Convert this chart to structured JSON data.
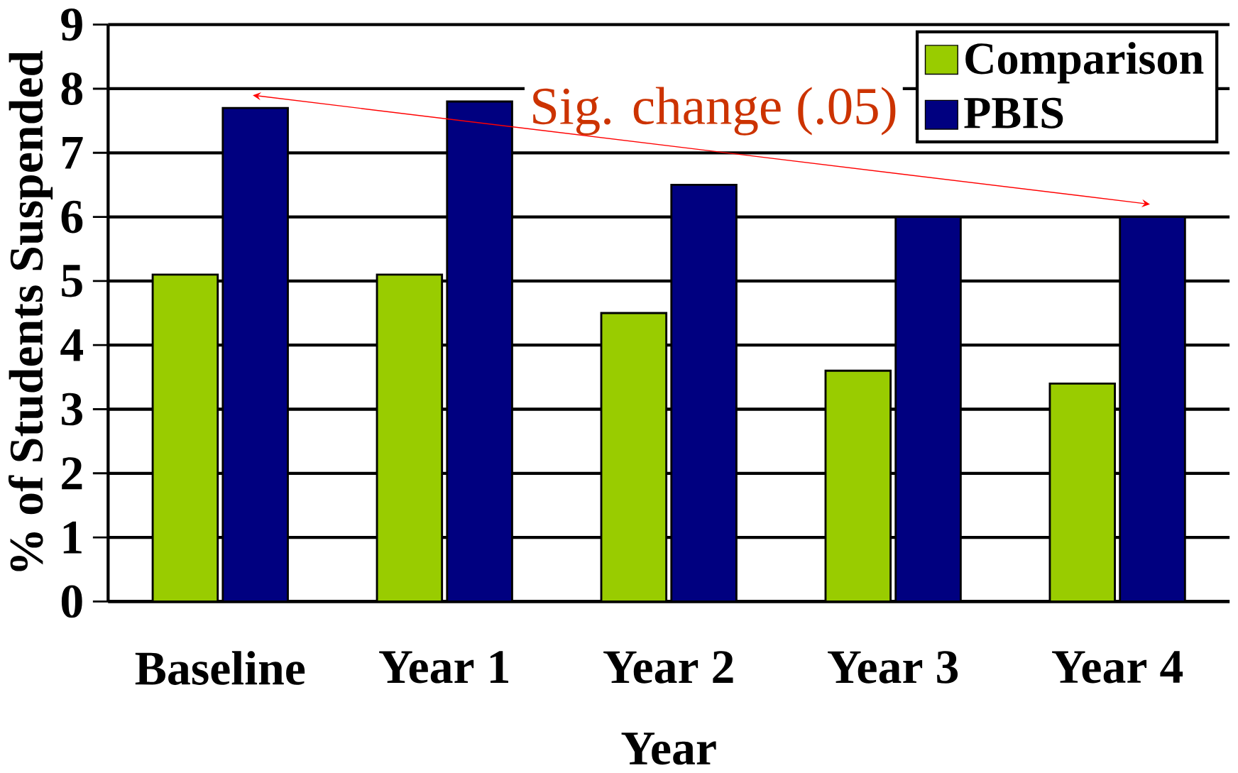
{
  "chart_data": {
    "type": "bar",
    "xlabel": "Year",
    "ylabel": "% of Students Suspended",
    "categories": [
      "Baseline",
      "Year 1",
      "Year 2",
      "Year 3",
      "Year 4"
    ],
    "series": [
      {
        "name": "Comparison",
        "color": "#99cc00",
        "values": [
          5.1,
          5.1,
          4.5,
          3.6,
          3.4
        ]
      },
      {
        "name": "PBIS",
        "color": "#000080",
        "values": [
          7.7,
          7.8,
          6.5,
          6.0,
          6.0
        ]
      }
    ],
    "ylim": [
      0,
      9
    ],
    "yticks": [
      0,
      1,
      2,
      3,
      4,
      5,
      6,
      7,
      8,
      9
    ],
    "grid": "y",
    "legend": "top right",
    "annotations": [
      "Sig. change (.05)"
    ]
  }
}
